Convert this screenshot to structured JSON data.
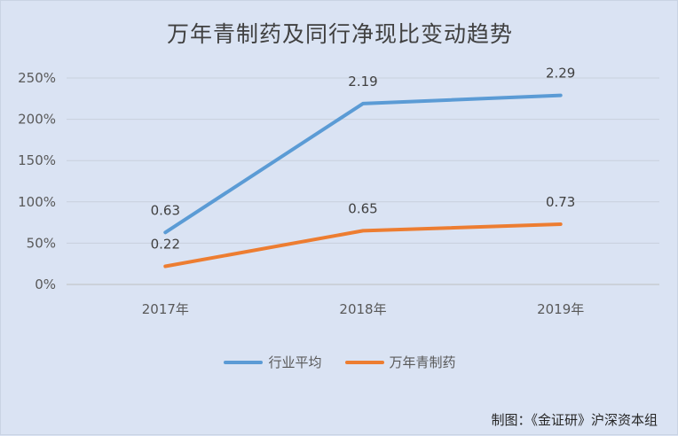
{
  "chart_data": {
    "type": "line",
    "title": "万年青制药及同行净现比变动趋势",
    "categories": [
      "2017年",
      "2018年",
      "2019年"
    ],
    "ylim": [
      0,
      250
    ],
    "yticks": [
      0,
      50,
      100,
      150,
      200,
      250
    ],
    "ytick_labels": [
      "0%",
      "50%",
      "100%",
      "150%",
      "200%",
      "250%"
    ],
    "grid": true,
    "legend_position": "bottom",
    "series": [
      {
        "name": "行业平均",
        "color": "#5b9bd5",
        "values": [
          63,
          219,
          229
        ],
        "data_labels": [
          "0.63",
          "2.19",
          "2.29"
        ]
      },
      {
        "name": "万年青制药",
        "color": "#ed7d31",
        "values": [
          22,
          65,
          73
        ],
        "data_labels": [
          "0.22",
          "0.65",
          "0.73"
        ]
      }
    ]
  },
  "source_note": "制图：《金证研》沪深资本组"
}
